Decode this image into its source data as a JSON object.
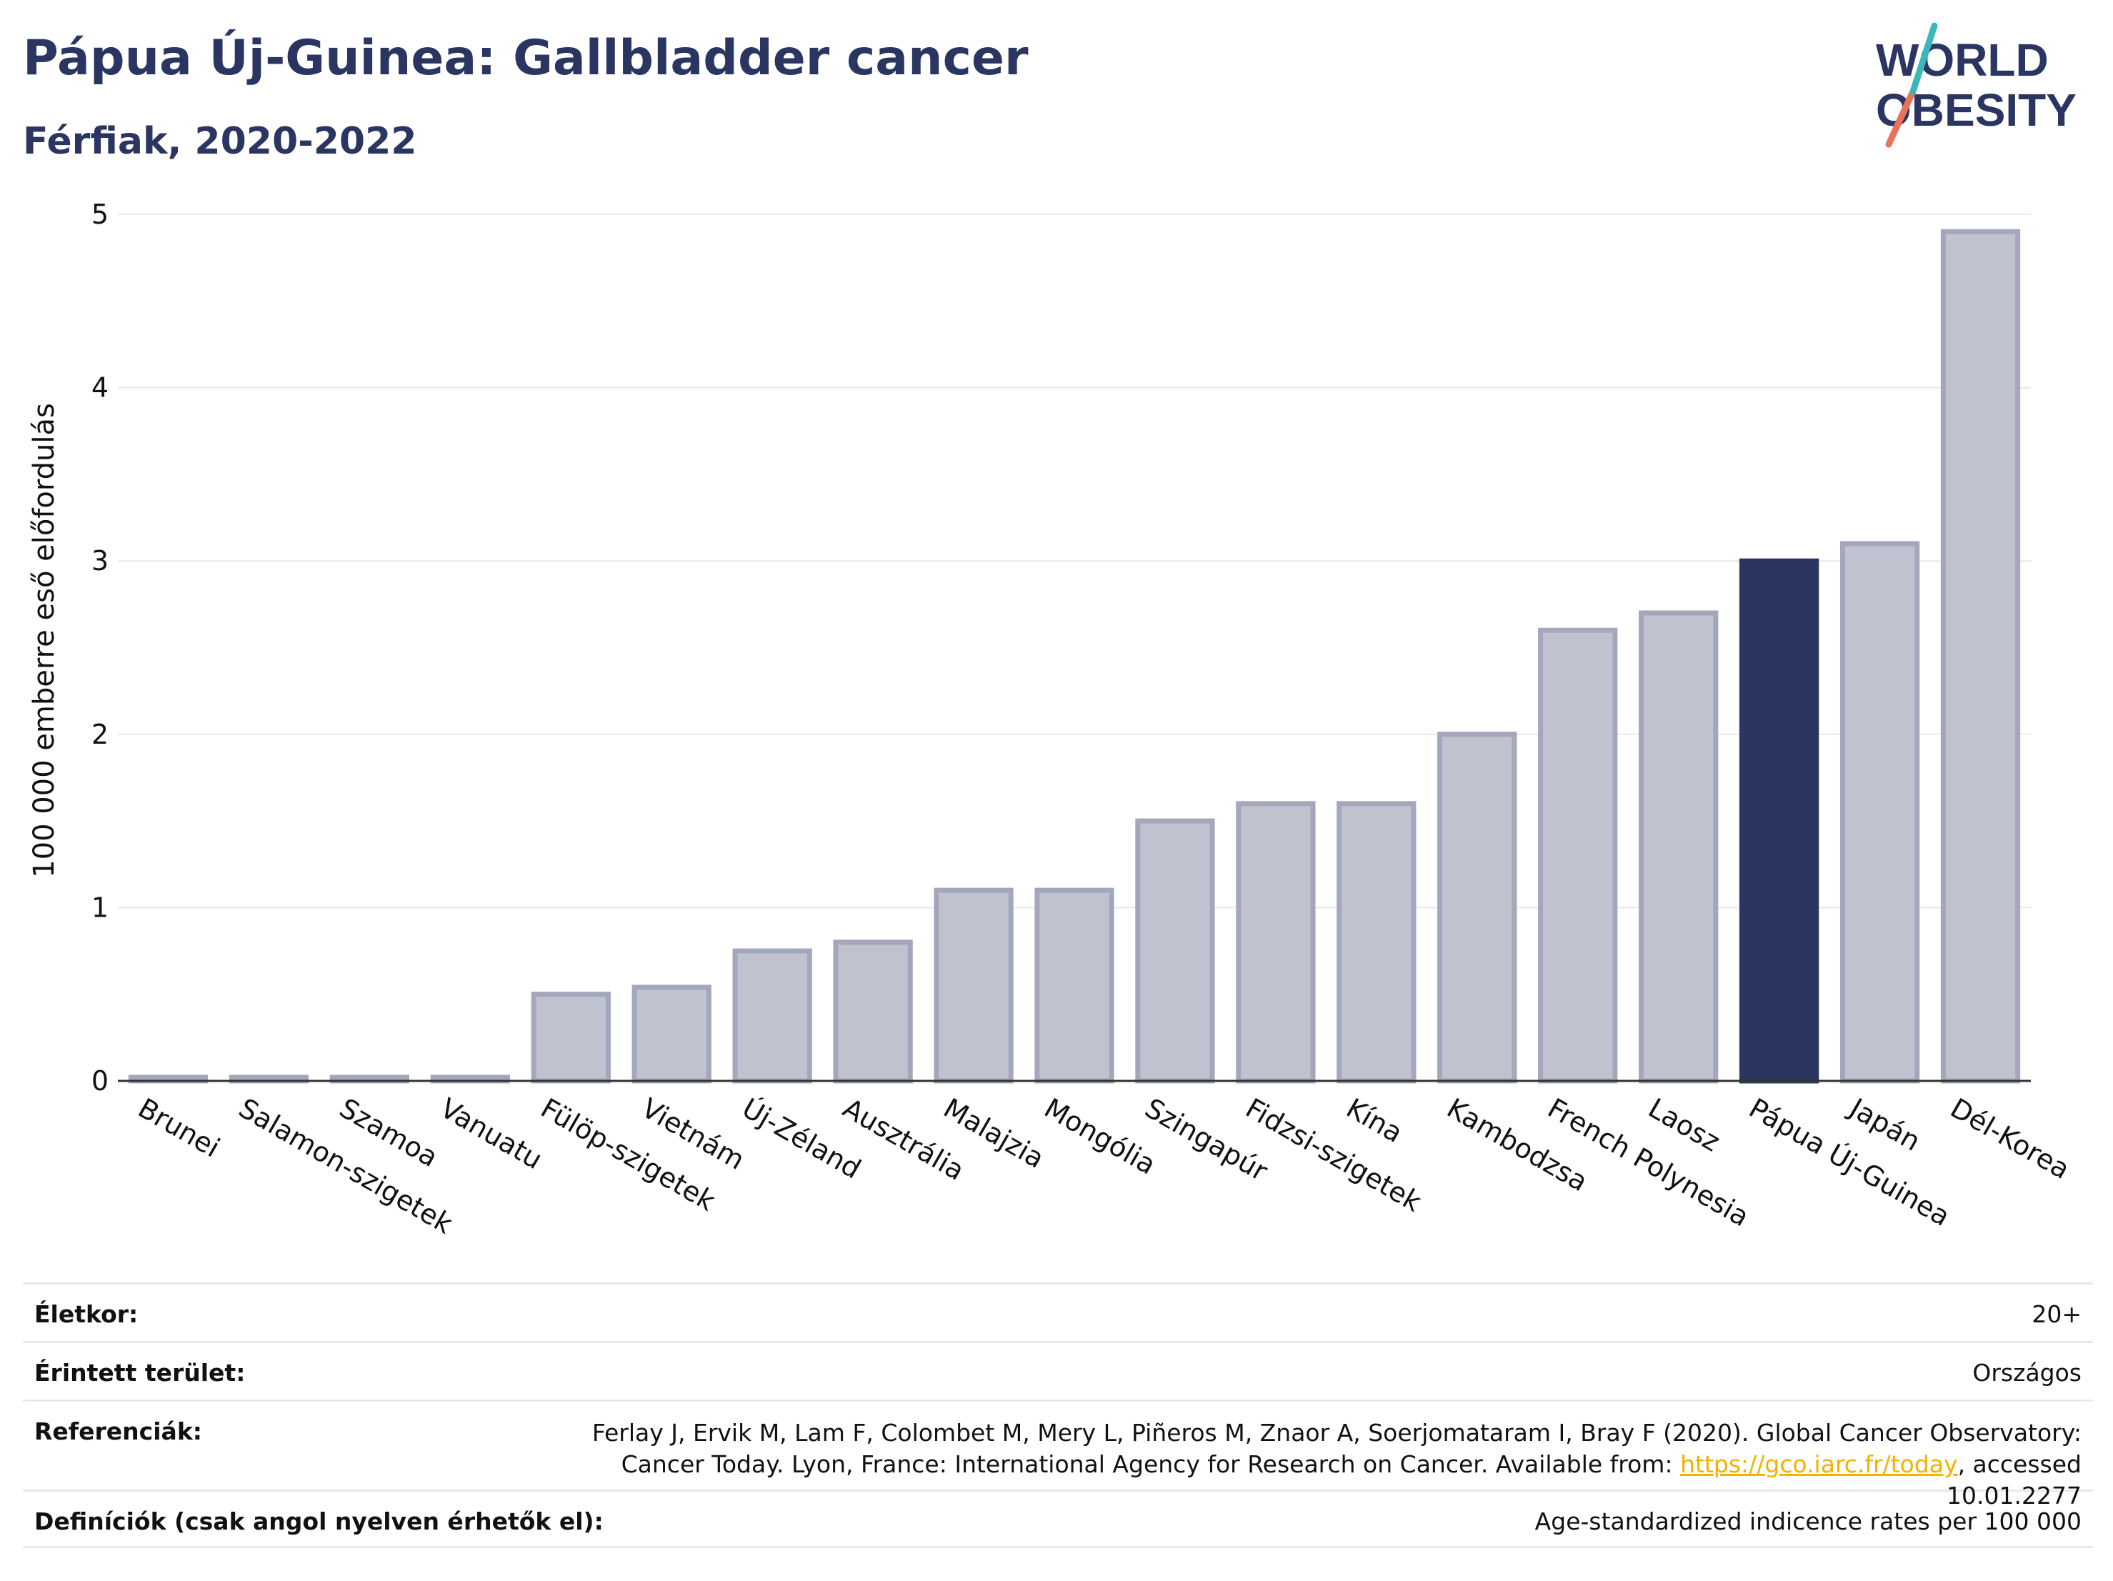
{
  "header": {
    "title": "Pápua Új-Guinea: Gallbladder cancer",
    "subtitle": "Férfiak, 2020-2022"
  },
  "logo": {
    "line1": "WORLD",
    "line2": "OBESITY"
  },
  "chart_data": {
    "type": "bar",
    "ylabel": "100 000 emberre eső előfordulás",
    "ylim": [
      0,
      5
    ],
    "yticks": [
      0,
      1,
      2,
      3,
      4,
      5
    ],
    "grid": true,
    "categories": [
      "Brunei",
      "Salamon-szigetek",
      "Szamoa",
      "Vanuatu",
      "Fülöp-szigetek",
      "Vietnám",
      "Új-Zéland",
      "Ausztrália",
      "Malajzia",
      "Mongólia",
      "Szingapúr",
      "Fidzsi-szigetek",
      "Kína",
      "Kambodzsa",
      "French Polynesia",
      "Laosz",
      "Pápua Új-Guinea",
      "Japán",
      "Dél-Korea"
    ],
    "values": [
      0.02,
      0.02,
      0.02,
      0.02,
      0.5,
      0.54,
      0.75,
      0.8,
      1.1,
      1.1,
      1.5,
      1.6,
      1.6,
      2.0,
      2.6,
      2.7,
      3.0,
      3.1,
      4.9
    ],
    "highlight": "Pápua Új-Guinea",
    "colors": {
      "highlight": "#2a3561",
      "default_fill": "#c0c3cf",
      "default_stroke": "#a3a7bb"
    }
  },
  "meta": {
    "age_label": "Életkor:",
    "age_value": "20+",
    "area_label": "Érintett terület:",
    "area_value": "Országos",
    "ref_label": "Referenciák:",
    "ref_text_1": "Ferlay J, Ervik M, Lam F, Colombet M, Mery L, Piñeros M, Znaor A, Soerjomataram I, Bray F (2020). Global Cancer Observatory: Cancer Today. Lyon, France: International Agency for Research on Cancer. Available from: ",
    "ref_link": "https://gco.iarc.fr/today",
    "ref_text_2": ", accessed 10.01.2277",
    "def_label": "Definíciók (csak angol nyelven érhetők el):",
    "def_value": "Age-standardized indicence rates per 100 000"
  }
}
